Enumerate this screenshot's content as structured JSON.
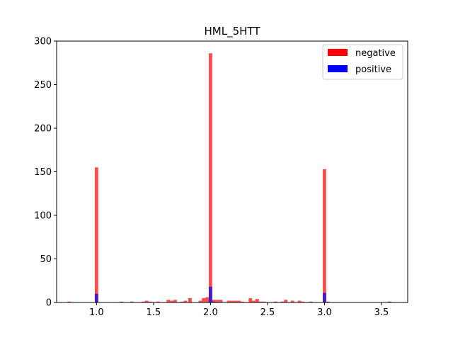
{
  "chart_data": {
    "type": "bar",
    "title": "HML_5HTT",
    "xlabel": "",
    "ylabel": "",
    "xlim": [
      0.65,
      3.73
    ],
    "ylim": [
      0,
      300
    ],
    "bin_width": 0.03,
    "x_ticks": [
      "1.0",
      "1.5",
      "2.0",
      "2.5",
      "3.0",
      "3.5"
    ],
    "y_ticks": [
      "0",
      "50",
      "100",
      "150",
      "200",
      "250",
      "300"
    ],
    "grid": false,
    "legend_position": "top-right",
    "series": [
      {
        "name": "negative",
        "color": "#ff0000",
        "opacity": 0.7,
        "points": [
          {
            "x": 0.76,
            "y": 1
          },
          {
            "x": 1.0,
            "y": 155
          },
          {
            "x": 1.22,
            "y": 1
          },
          {
            "x": 1.31,
            "y": 1
          },
          {
            "x": 1.41,
            "y": 1
          },
          {
            "x": 1.44,
            "y": 2
          },
          {
            "x": 1.47,
            "y": 1
          },
          {
            "x": 1.54,
            "y": 1
          },
          {
            "x": 1.63,
            "y": 3
          },
          {
            "x": 1.66,
            "y": 2
          },
          {
            "x": 1.69,
            "y": 3
          },
          {
            "x": 1.75,
            "y": 1
          },
          {
            "x": 1.78,
            "y": 2
          },
          {
            "x": 1.82,
            "y": 5
          },
          {
            "x": 1.91,
            "y": 2
          },
          {
            "x": 1.94,
            "y": 5
          },
          {
            "x": 1.97,
            "y": 6
          },
          {
            "x": 2.0,
            "y": 286
          },
          {
            "x": 2.03,
            "y": 3
          },
          {
            "x": 2.06,
            "y": 3
          },
          {
            "x": 2.09,
            "y": 3
          },
          {
            "x": 2.16,
            "y": 2
          },
          {
            "x": 2.19,
            "y": 2
          },
          {
            "x": 2.22,
            "y": 2
          },
          {
            "x": 2.25,
            "y": 2
          },
          {
            "x": 2.28,
            "y": 1
          },
          {
            "x": 2.35,
            "y": 5
          },
          {
            "x": 2.38,
            "y": 2
          },
          {
            "x": 2.41,
            "y": 4
          },
          {
            "x": 2.44,
            "y": 1
          },
          {
            "x": 2.47,
            "y": 1
          },
          {
            "x": 2.57,
            "y": 1
          },
          {
            "x": 2.63,
            "y": 1
          },
          {
            "x": 2.66,
            "y": 3
          },
          {
            "x": 2.72,
            "y": 2
          },
          {
            "x": 2.78,
            "y": 2
          },
          {
            "x": 2.81,
            "y": 1
          },
          {
            "x": 2.88,
            "y": 1
          },
          {
            "x": 3.0,
            "y": 153
          },
          {
            "x": 3.03,
            "y": 1
          }
        ]
      },
      {
        "name": "positive",
        "color": "#0000ff",
        "opacity": 0.7,
        "points": [
          {
            "x": 1.0,
            "y": 10
          },
          {
            "x": 2.0,
            "y": 18
          },
          {
            "x": 2.03,
            "y": 1
          },
          {
            "x": 3.0,
            "y": 11
          },
          {
            "x": 3.57,
            "y": 1
          }
        ]
      }
    ]
  }
}
